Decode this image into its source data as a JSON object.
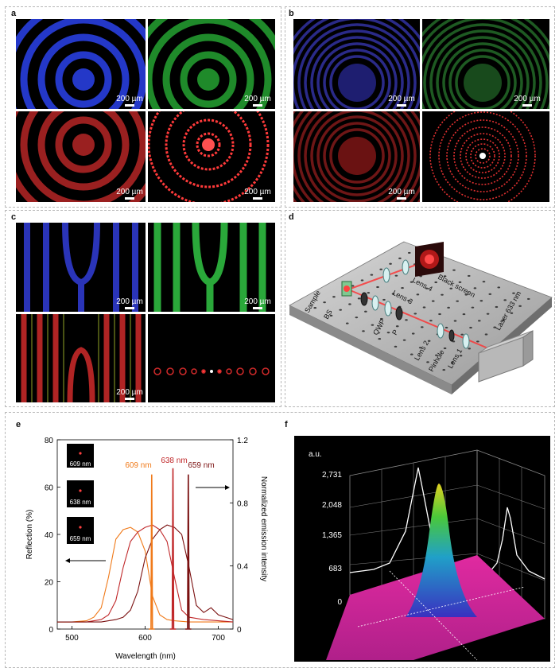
{
  "panels": {
    "a": {
      "label": "a",
      "scale_bars": [
        "200 µm",
        "200 µm",
        "200 µm",
        "200 µm"
      ]
    },
    "b": {
      "label": "b",
      "scale_bars": [
        "200 µm",
        "200 µm",
        "200 µm"
      ]
    },
    "c": {
      "label": "c",
      "scale_bars": [
        "200 µm",
        "200 µm",
        "200 µm"
      ]
    },
    "d": {
      "label": "d",
      "labels": [
        "Black screen",
        "Lens 4",
        "Lens 3",
        "Sample",
        "BS",
        "QWP",
        "P",
        "Lens 2",
        "Pinhole",
        "Lens 1",
        "Laser 633 nm"
      ]
    },
    "e": {
      "label": "e",
      "insets": [
        "609 nm",
        "638 nm",
        "659 nm"
      ],
      "peak_labels": [
        "609 nm",
        "638 nm",
        "659 nm"
      ]
    },
    "f": {
      "label": "f",
      "unit": "a.u.",
      "ticks": [
        "2,731",
        "2,048",
        "1,365",
        "683",
        "0"
      ]
    }
  },
  "chart_data": {
    "type": "line",
    "xlabel": "Wavelength (nm)",
    "ylabel": "Reflection (%)",
    "y2label": "Normalized emission intensity",
    "xlim": [
      480,
      720
    ],
    "ylim": [
      0,
      80
    ],
    "y2lim": [
      0,
      1.2
    ],
    "xticks": [
      "500",
      "600",
      "700"
    ],
    "yticks": [
      "0",
      "20",
      "40",
      "60",
      "80"
    ],
    "y2ticks": [
      "0",
      "0.4",
      "0.8",
      "1.2"
    ],
    "colors": {
      "609": "#f07a1a",
      "638": "#c0282a",
      "659": "#7a1010"
    },
    "series": [
      {
        "axis": "left",
        "color": "#f07a1a",
        "x": [
          480,
          500,
          520,
          530,
          540,
          550,
          560,
          570,
          580,
          590,
          600,
          610,
          620,
          630,
          640,
          660,
          680,
          700,
          720
        ],
        "y": [
          3,
          3,
          3.5,
          5,
          9,
          22,
          38,
          42,
          43,
          41,
          33,
          14,
          6,
          4,
          3.5,
          3,
          3,
          3,
          3
        ]
      },
      {
        "axis": "left",
        "color": "#c0282a",
        "x": [
          480,
          500,
          520,
          540,
          550,
          560,
          570,
          580,
          590,
          600,
          610,
          620,
          630,
          640,
          650,
          660,
          680,
          700,
          720
        ],
        "y": [
          3,
          3,
          3,
          4,
          6,
          12,
          26,
          37,
          41,
          43,
          44,
          42,
          37,
          22,
          8,
          5,
          4,
          3.5,
          3
        ]
      },
      {
        "axis": "left",
        "color": "#7a1010",
        "x": [
          480,
          500,
          520,
          540,
          560,
          570,
          580,
          590,
          600,
          610,
          620,
          630,
          640,
          650,
          660,
          670,
          680,
          690,
          700,
          720
        ],
        "y": [
          3,
          3,
          3,
          3,
          4,
          5,
          8,
          16,
          30,
          38,
          42,
          44,
          43,
          40,
          26,
          10,
          7,
          9,
          6,
          4
        ]
      },
      {
        "axis": "right",
        "color": "#f07a1a",
        "x": [
          605,
          608,
          609,
          610,
          613
        ],
        "y": [
          0,
          0,
          0.98,
          0,
          0
        ]
      },
      {
        "axis": "right",
        "color": "#c0282a",
        "x": [
          634,
          637,
          638,
          639,
          642
        ],
        "y": [
          0,
          0,
          1.02,
          0,
          0
        ]
      },
      {
        "axis": "right",
        "color": "#7a1010",
        "x": [
          655,
          658,
          659,
          660,
          663
        ],
        "y": [
          0,
          0,
          0.98,
          0,
          0
        ]
      }
    ]
  }
}
